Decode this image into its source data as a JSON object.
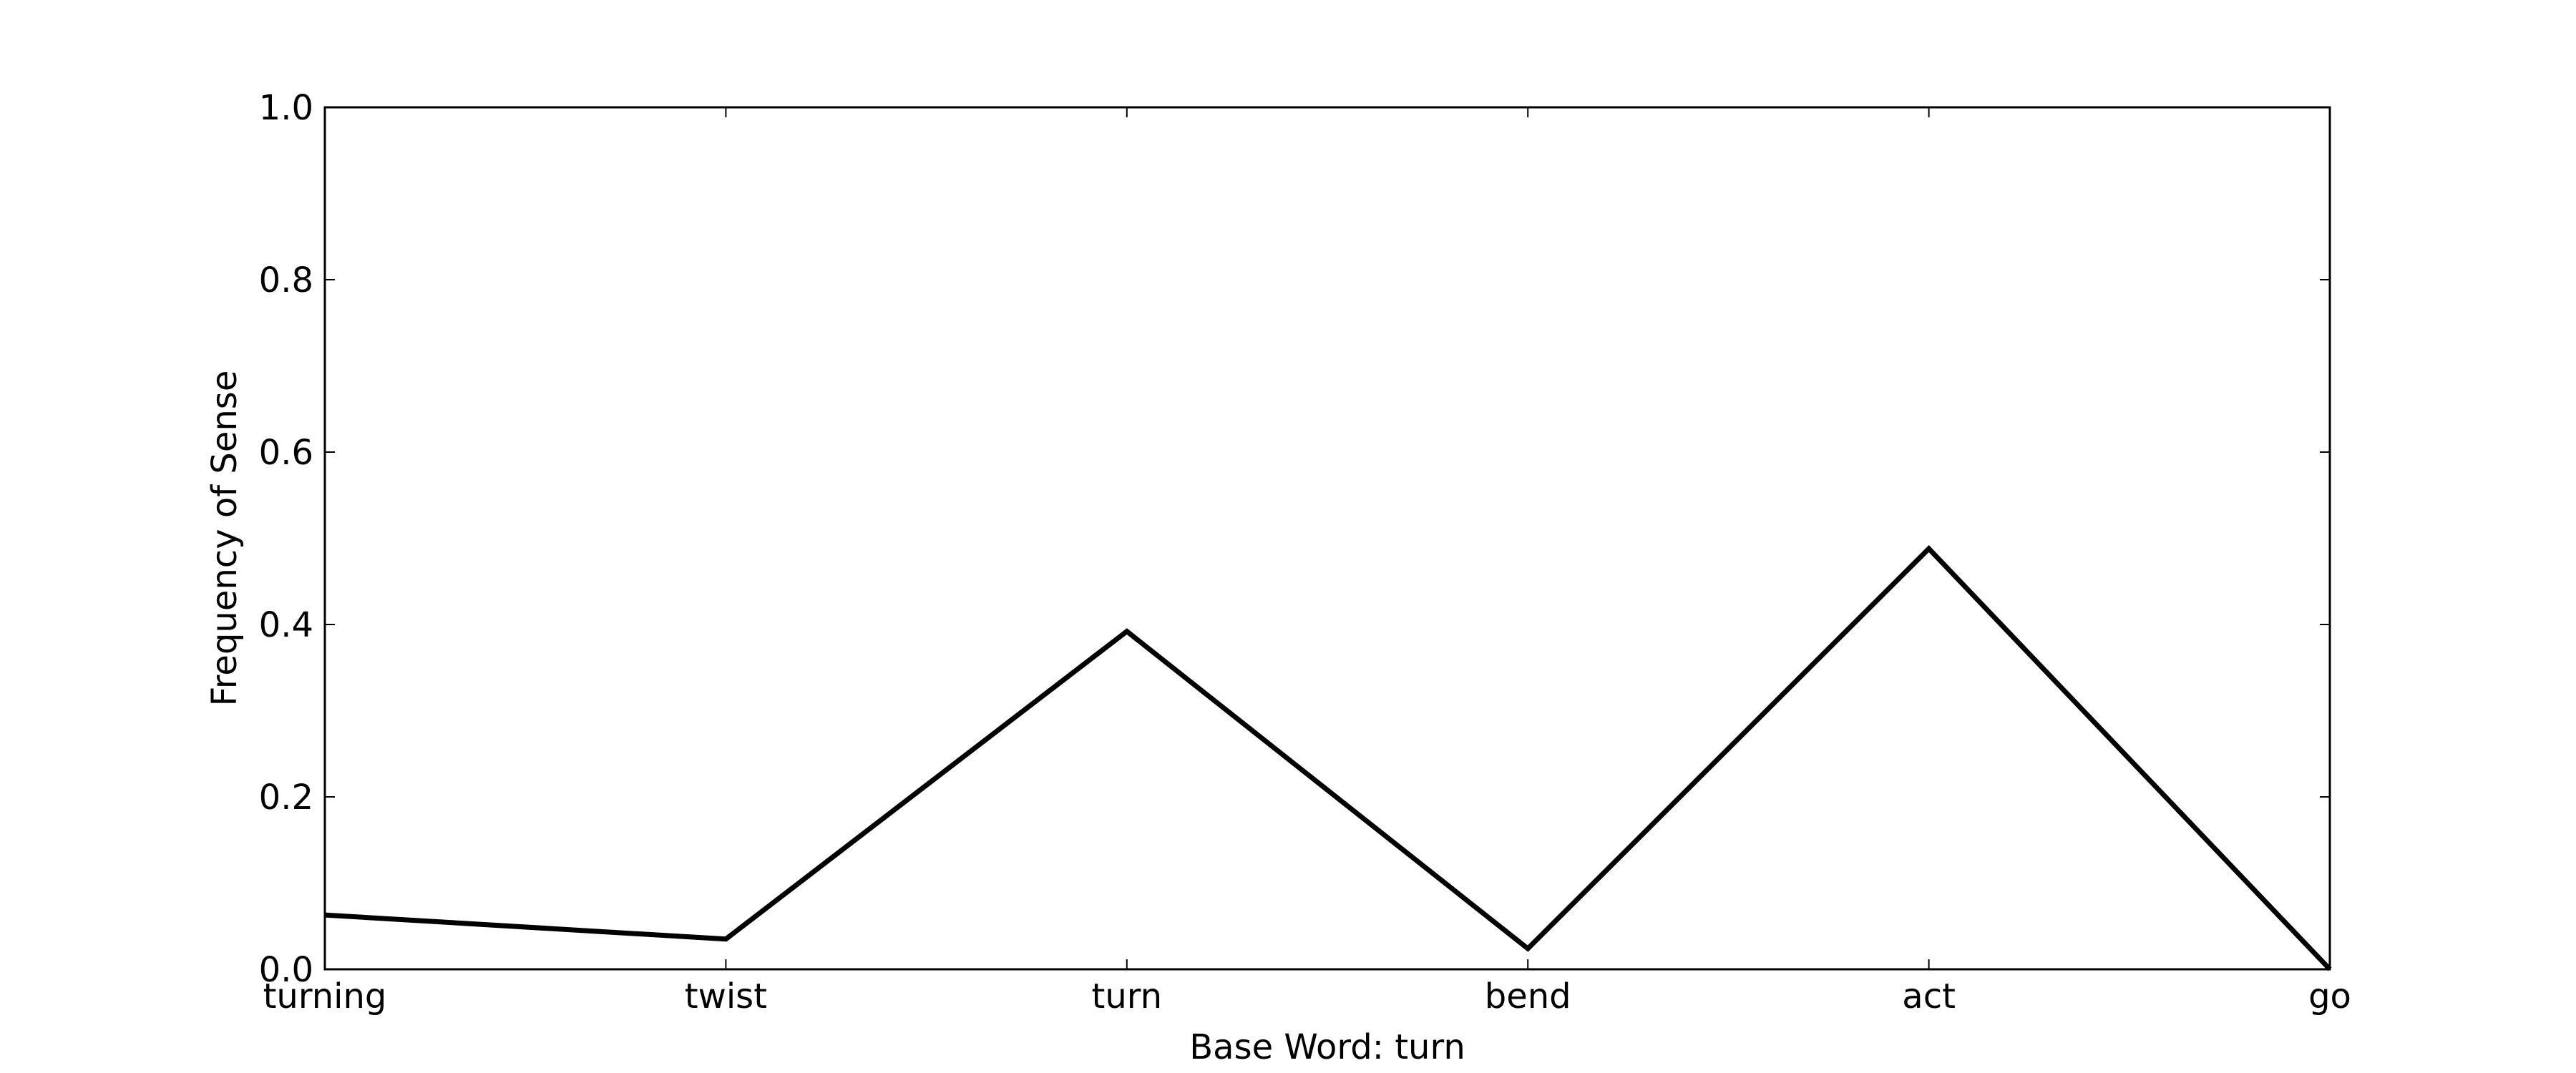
{
  "chart_data": {
    "type": "line",
    "title": "",
    "xlabel": "Base Word: turn",
    "ylabel": "Frequency of Sense",
    "categories": [
      "turning",
      "twist",
      "turn",
      "bend",
      "act",
      "go"
    ],
    "series": [
      {
        "values": [
          0.063,
          0.035,
          0.392,
          0.024,
          0.488,
          0.0
        ],
        "color": "#000000"
      }
    ],
    "ylim": [
      0.0,
      1.0
    ],
    "yticks": [
      "0.0",
      "0.2",
      "0.4",
      "0.6",
      "0.8",
      "1.0"
    ],
    "grid": false,
    "legend": "none"
  }
}
